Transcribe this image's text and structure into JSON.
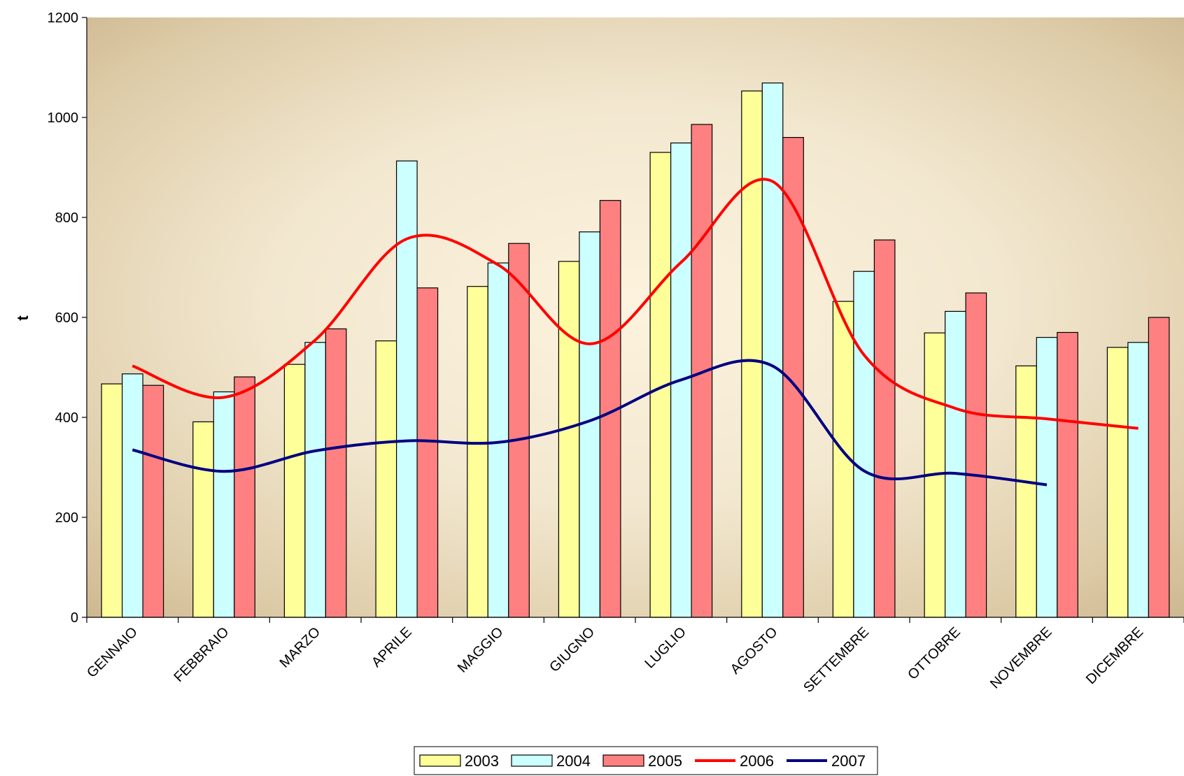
{
  "chart_data": {
    "type": "bar",
    "title": "",
    "xlabel": "",
    "ylabel": "t",
    "ylim": [
      0,
      1200
    ],
    "yticks": [
      0,
      200,
      400,
      600,
      800,
      1000,
      1200
    ],
    "grid": false,
    "legend_position": "bottom",
    "categories": [
      "GENNAIO",
      "FEBBRAIO",
      "MARZO",
      "APRILE",
      "MAGGIO",
      "GIUGNO",
      "LUGLIO",
      "AGOSTO",
      "SETTEMBRE",
      "OTTOBRE",
      "NOVEMBRE",
      "DICEMBRE"
    ],
    "bar_series": [
      {
        "name": "2003",
        "color": "#FFFF99",
        "values": [
          467,
          391,
          506,
          553,
          662,
          712,
          930,
          1053,
          632,
          569,
          503,
          540
        ]
      },
      {
        "name": "2004",
        "color": "#CCFFFF",
        "values": [
          487,
          451,
          550,
          913,
          709,
          771,
          949,
          1069,
          692,
          612,
          560,
          550
        ]
      },
      {
        "name": "2005",
        "color": "#FF8080",
        "values": [
          464,
          481,
          577,
          659,
          748,
          834,
          986,
          960,
          755,
          649,
          570,
          600
        ]
      }
    ],
    "line_series": [
      {
        "name": "2006",
        "color": "#FF0000",
        "values": [
          503,
          440,
          555,
          757,
          705,
          547,
          710,
          872,
          525,
          418,
          397,
          378
        ]
      },
      {
        "name": "2007",
        "color": "#000080",
        "values": [
          335,
          292,
          333,
          353,
          350,
          393,
          475,
          503,
          293,
          288,
          265
        ]
      }
    ]
  }
}
